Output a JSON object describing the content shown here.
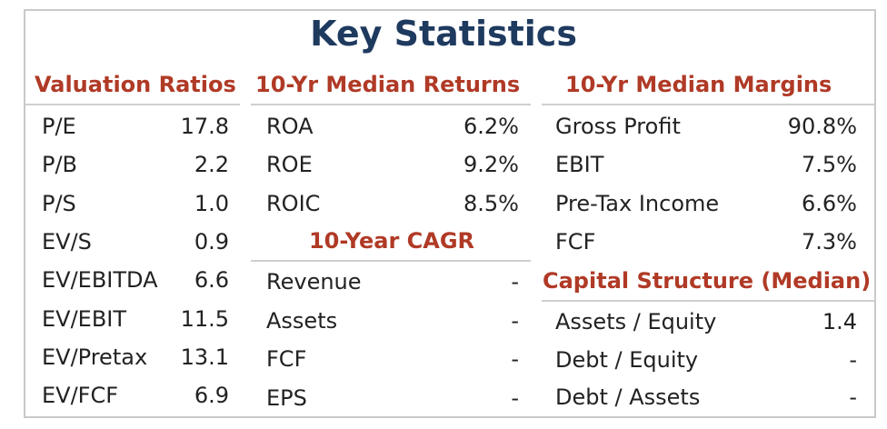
{
  "title": "Key Statistics",
  "sections": {
    "valuation": {
      "header": "Valuation Ratios",
      "rows": [
        {
          "label": "P/E",
          "value": "17.8"
        },
        {
          "label": "P/B",
          "value": "2.2"
        },
        {
          "label": "P/S",
          "value": "1.0"
        },
        {
          "label": "EV/S",
          "value": "0.9"
        },
        {
          "label": "EV/EBITDA",
          "value": "6.6"
        },
        {
          "label": "EV/EBIT",
          "value": "11.5"
        },
        {
          "label": "EV/Pretax",
          "value": "13.1"
        },
        {
          "label": "EV/FCF",
          "value": "6.9"
        }
      ]
    },
    "returns": {
      "header": "10-Yr Median Returns",
      "rows": [
        {
          "label": "ROA",
          "value": "6.2%"
        },
        {
          "label": "ROE",
          "value": "9.2%"
        },
        {
          "label": "ROIC",
          "value": "8.5%"
        }
      ]
    },
    "cagr": {
      "header": "10-Year CAGR",
      "rows": [
        {
          "label": "Revenue",
          "value": "-"
        },
        {
          "label": "Assets",
          "value": "-"
        },
        {
          "label": "FCF",
          "value": "-"
        },
        {
          "label": "EPS",
          "value": "-"
        }
      ]
    },
    "margins": {
      "header": "10-Yr Median Margins",
      "rows": [
        {
          "label": "Gross Profit",
          "value": "90.8%"
        },
        {
          "label": "EBIT",
          "value": "7.5%"
        },
        {
          "label": "Pre-Tax Income",
          "value": "6.6%"
        },
        {
          "label": "FCF",
          "value": "7.3%"
        }
      ]
    },
    "capital": {
      "header": "Capital Structure (Median)",
      "rows": [
        {
          "label": "Assets / Equity",
          "value": "1.4"
        },
        {
          "label": "Debt / Equity",
          "value": "-"
        },
        {
          "label": "Debt / Assets",
          "value": "-"
        }
      ]
    }
  },
  "colors": {
    "title": "#1f3a5f",
    "header": "#b03a26",
    "border": "#c9c9c9"
  }
}
